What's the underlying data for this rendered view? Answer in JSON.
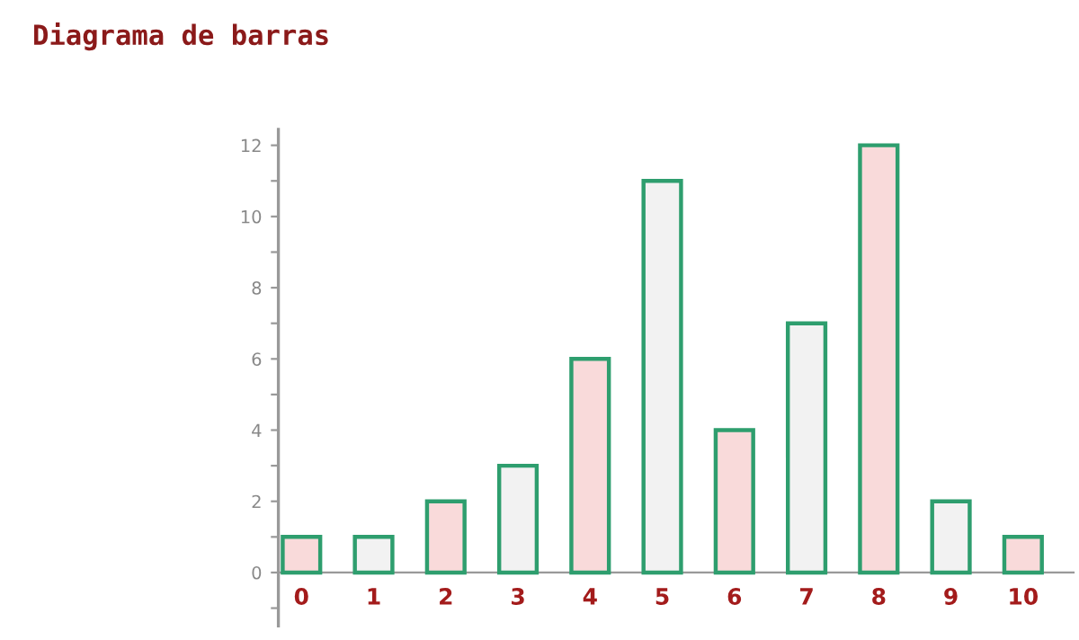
{
  "chart_data": {
    "type": "bar",
    "title": "Diagrama de barras",
    "categories": [
      "0",
      "1",
      "2",
      "3",
      "4",
      "5",
      "6",
      "7",
      "8",
      "9",
      "10"
    ],
    "values": [
      1,
      1,
      2,
      3,
      6,
      11,
      4,
      7,
      12,
      2,
      1
    ],
    "colors": [
      "#f9dada",
      "#f2f2f2",
      "#f9dada",
      "#f2f2f2",
      "#f9dada",
      "#f2f2f2",
      "#f9dada",
      "#f2f2f2",
      "#f9dada",
      "#f2f2f2",
      "#f9dada"
    ],
    "ylim": [
      -1.5,
      12.45
    ],
    "yticks": [
      {
        "value": -1,
        "label": null
      },
      0,
      {
        "value": 1,
        "label": null
      },
      2,
      {
        "value": 3,
        "label": null
      },
      4,
      {
        "value": 5,
        "label": null
      },
      6,
      {
        "value": 7,
        "label": null
      },
      8,
      {
        "value": 9,
        "label": null
      },
      10,
      {
        "value": 11,
        "label": null
      },
      12
    ],
    "grid": false,
    "legend": false
  }
}
